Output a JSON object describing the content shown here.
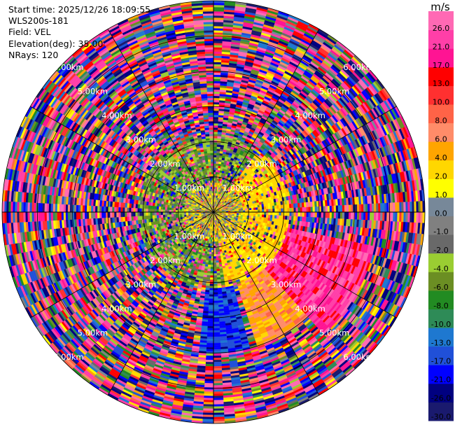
{
  "header": {
    "start_time": "Start time: 2025/12/26 18:09:55",
    "instrument": "WLS200s-181",
    "field": "Field: VEL",
    "elevation": "Elevation(deg): 35.00",
    "nrays": "NRays: 120"
  },
  "chart_data": {
    "type": "heatmap",
    "projection": "polar-ppi",
    "field": "VEL",
    "units": "m/s",
    "n_rays": 120,
    "elevation_deg": 35.0,
    "max_range_km": 9.0,
    "range_ring_labels": [
      "1.00km",
      "2.00km",
      "3.00km",
      "4.00km",
      "5.00km",
      "6.00km"
    ],
    "colorbar": {
      "title": "m/s",
      "ticks": [
        "26.0",
        "21.0",
        "17.0",
        "13.0",
        "10.0",
        "8.0",
        "6.0",
        "4.0",
        "2.0",
        "1.0",
        "0.0",
        "-1.0",
        "-2.0",
        "-4.0",
        "-6.0",
        "-8.0",
        "-10.0",
        "-13.0",
        "-17.0",
        "-21.0",
        "-26.0",
        "-30.0"
      ],
      "levels": [
        -30,
        -26,
        -21,
        -17,
        -13,
        -10,
        -8,
        -6,
        -4,
        -2,
        -1,
        0,
        1,
        2,
        4,
        6,
        8,
        10,
        13,
        17,
        21,
        26,
        30
      ],
      "colors": [
        "#1a1a6e",
        "#000080",
        "#0000ff",
        "#2050d8",
        "#1e78d0",
        "#2e8b57",
        "#228b22",
        "#6b8e23",
        "#9acd32",
        "#696969",
        "#808080",
        "#778899",
        "#ffff00",
        "#ffd700",
        "#ffa500",
        "#ff8c69",
        "#ff6347",
        "#ff3030",
        "#ff0000",
        "#ff1493",
        "#ff3fa8",
        "#ff69b4"
      ]
    }
  }
}
